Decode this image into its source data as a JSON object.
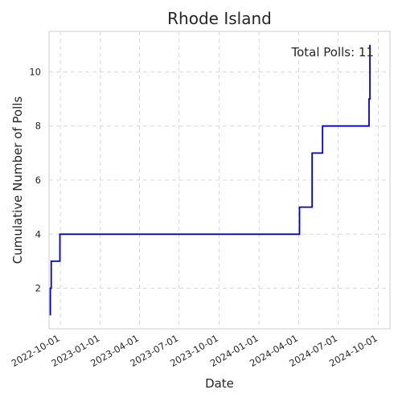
{
  "chart_data": {
    "type": "line",
    "step": "post",
    "title": "Rhode Island",
    "xlabel": "Date",
    "ylabel": "Cumulative Number of Polls",
    "annotation": "Total Polls: 11",
    "x_ticks": [
      "2022-10-01",
      "2023-01-01",
      "2023-04-01",
      "2023-07-01",
      "2023-10-01",
      "2024-01-01",
      "2024-04-01",
      "2024-07-01",
      "2024-10-01"
    ],
    "y_ticks": [
      2,
      4,
      6,
      8,
      10
    ],
    "xlim": [
      "2022-09-05",
      "2024-10-28"
    ],
    "ylim": [
      0.5,
      11.5
    ],
    "grid": true,
    "series": [
      {
        "color": "#0000cc",
        "x": [
          "2022-09-08",
          "2022-09-08",
          "2022-09-10",
          "2022-09-10",
          "2022-09-30",
          "2022-09-30",
          "2024-04-03",
          "2024-04-03",
          "2024-05-02",
          "2024-05-02",
          "2024-05-26",
          "2024-05-26",
          "2024-09-10",
          "2024-09-10",
          "2024-09-12",
          "2024-09-12"
        ],
        "y": [
          1,
          2,
          2,
          3,
          3,
          4,
          4,
          5,
          5,
          7,
          7,
          8,
          8,
          9,
          9,
          11
        ]
      }
    ]
  }
}
